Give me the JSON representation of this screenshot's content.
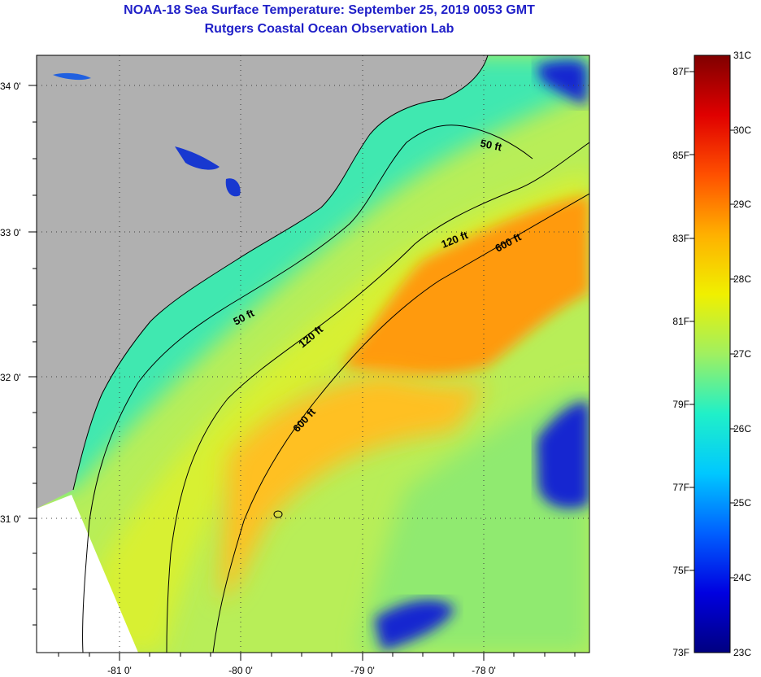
{
  "header": {
    "title": "NOAA-18 Sea Surface Temperature:  September 25, 2019 0053 GMT",
    "subtitle": "Rutgers Coastal Ocean Observation Lab"
  },
  "map": {
    "lat_labels": [
      "34 0'",
      "33 0'",
      "32 0'",
      "31 0'"
    ],
    "lon_labels": [
      "-81 0'",
      "-80 0'",
      "-79 0'",
      "-78 0'"
    ],
    "contour_labels": [
      "50 ft",
      "50 ft",
      "120 ft",
      "120 ft",
      "600 ft",
      "600 ft"
    ],
    "colors": {
      "land": "#b0b0b0",
      "no_data": "#ffffff",
      "contour": "#000000"
    }
  },
  "colorbar": {
    "fahrenheit_labels": [
      "87F",
      "85F",
      "83F",
      "81F",
      "79F",
      "77F",
      "75F",
      "73F"
    ],
    "celsius_labels": [
      "31C",
      "30C",
      "29C",
      "28C",
      "27C",
      "26C",
      "25C",
      "24C",
      "23C"
    ],
    "stops": [
      "#000080",
      "#0000e0",
      "#0060ff",
      "#00c8ff",
      "#20f0c8",
      "#a0f060",
      "#f0f000",
      "#ffb000",
      "#ff5000",
      "#e00000",
      "#800000"
    ]
  }
}
